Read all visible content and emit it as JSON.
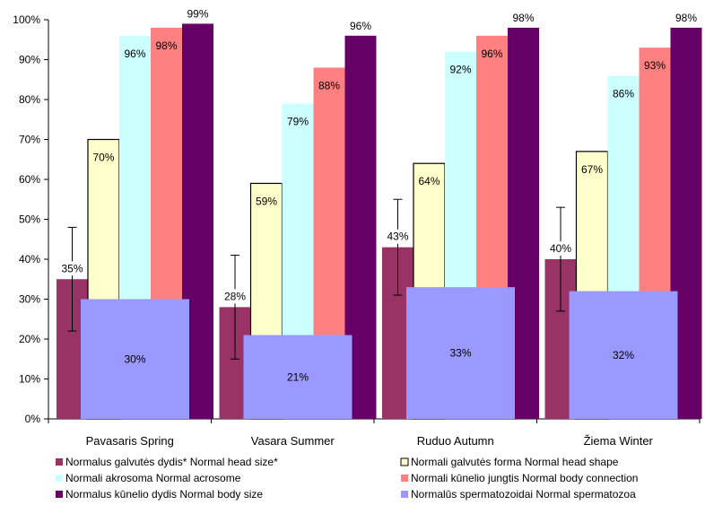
{
  "chart_data": {
    "type": "bar",
    "categories": [
      "Pavasaris Spring",
      "Vasara Summer",
      "Ruduo Autumn",
      "Žiema Winter"
    ],
    "series": [
      {
        "name": "Normalus galvutės dydis* Normal head size*",
        "values": [
          35,
          28,
          43,
          40
        ],
        "labels": [
          "35%",
          "28%",
          "43%",
          "40%"
        ],
        "error": [
          13,
          13,
          12,
          13
        ],
        "color": "#993366"
      },
      {
        "name": "Normali galvutės forma Normal head shape",
        "values": [
          70,
          59,
          64,
          67
        ],
        "labels": [
          "70%",
          "59%",
          "64%",
          "67%"
        ],
        "color": "#FFFFCC"
      },
      {
        "name": "Normali akrosoma Normal acrosome",
        "values": [
          96,
          79,
          92,
          86
        ],
        "labels": [
          "96%",
          "79%",
          "92%",
          "86%"
        ],
        "color": "#CCFFFF"
      },
      {
        "name": "Normali kūnelio jungtis Normal body connection",
        "values": [
          98,
          88,
          96,
          93
        ],
        "labels": [
          "98%",
          "88%",
          "96%",
          "93%"
        ],
        "color": "#FF8080"
      },
      {
        "name": "Normalus kūnelio dydis Normal body size",
        "values": [
          99,
          96,
          98,
          98
        ],
        "labels": [
          "99%",
          "96%",
          "98%",
          "98%"
        ],
        "color": "#660066"
      },
      {
        "name": "Normalūs spermatozoidai Normal spermatozoa",
        "values": [
          30,
          21,
          33,
          32
        ],
        "labels": [
          "30%",
          "21%",
          "33%",
          "32%"
        ],
        "color": "#9999FF"
      }
    ],
    "yticks": [
      "0%",
      "10%",
      "20%",
      "30%",
      "40%",
      "50%",
      "60%",
      "70%",
      "80%",
      "90%",
      "100%"
    ],
    "ylim": [
      0,
      100
    ],
    "grid": false,
    "legend_position": "bottom"
  }
}
